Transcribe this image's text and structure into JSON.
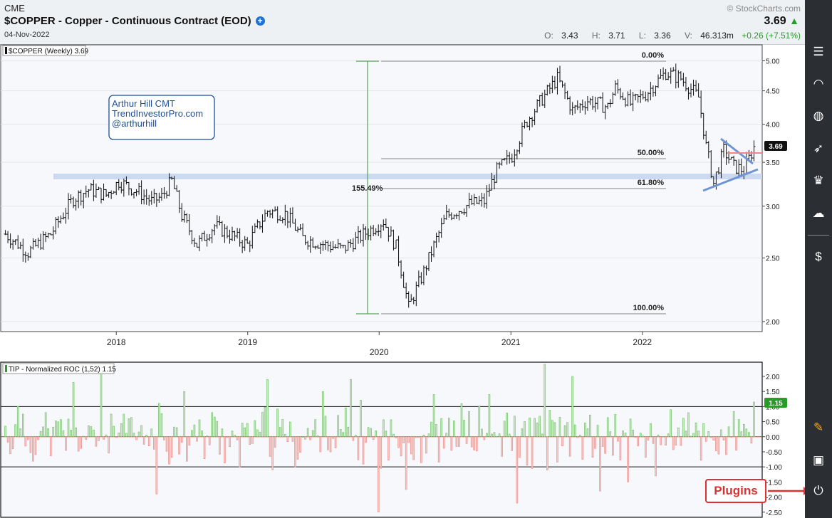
{
  "header": {
    "exchange": "CME",
    "title": "$COPPER - Copper - Continuous Contract (EOD)",
    "date": "04-Nov-2022",
    "copyright": "© StockCharts.com",
    "last_price": "3.69",
    "open_label": "O:",
    "open": "3.43",
    "high_label": "H:",
    "high": "3.71",
    "low_label": "L:",
    "low": "3.36",
    "volume_label": "V:",
    "volume": "46.313m",
    "change": "+0.26 (+7.51%)"
  },
  "colors": {
    "up": "#2a9a2a",
    "down": "#e03030",
    "fib": "#aaaaaa",
    "pattern": "#6f95d6",
    "zone": "#c6d6f0",
    "box": "#1f4e9c"
  },
  "annotation": {
    "line1": "Arthur Hill CMT",
    "line2": "TrendInvestorPro.com",
    "line3": "@arthurhill"
  },
  "plugins_label": "Plugins",
  "sidebar_icons": [
    "sliders-icon",
    "signal-icon",
    "globe-icon",
    "rocket-icon",
    "trophy-icon",
    "cloud-icon",
    "dollar-doc-icon",
    "brush-icon",
    "tv-icon",
    "plug-icon"
  ],
  "chart_data": [
    {
      "type": "ohlc",
      "legend": "$COPPER (Weekly) 3.69",
      "last_value_label": "3.69",
      "y_scale": "log",
      "ylim": [
        1.95,
        5.25
      ],
      "y_ticks": [
        "5.00",
        "4.50",
        "4.00",
        "3.50",
        "3.00",
        "2.50",
        "2.00"
      ],
      "x_ticks": [
        "2018",
        "2019",
        "2020",
        "2021",
        "2022"
      ],
      "x_range": [
        "2017-02-20",
        "2022-11-14"
      ],
      "points": [
        [
          "2017-02-27",
          2.72
        ],
        [
          "2017-05-01",
          2.55
        ],
        [
          "2017-07-03",
          2.72
        ],
        [
          "2017-09-04",
          3.08
        ],
        [
          "2017-10-16",
          3.18
        ],
        [
          "2017-12-04",
          3.12
        ],
        [
          "2018-01-08",
          3.27
        ],
        [
          "2018-03-05",
          3.15
        ],
        [
          "2018-04-09",
          3.05
        ],
        [
          "2018-05-07",
          3.1
        ],
        [
          "2018-06-04",
          3.28
        ],
        [
          "2018-07-02",
          2.9
        ],
        [
          "2018-08-13",
          2.62
        ],
        [
          "2018-10-01",
          2.8
        ],
        [
          "2018-12-31",
          2.62
        ],
        [
          "2019-02-25",
          2.95
        ],
        [
          "2019-04-15",
          2.92
        ],
        [
          "2019-06-03",
          2.68
        ],
        [
          "2019-08-05",
          2.62
        ],
        [
          "2019-09-23",
          2.58
        ],
        [
          "2019-11-04",
          2.68
        ],
        [
          "2020-01-13",
          2.85
        ],
        [
          "2020-02-17",
          2.6
        ],
        [
          "2020-03-23",
          2.1
        ],
        [
          "2020-05-04",
          2.38
        ],
        [
          "2020-07-06",
          2.9
        ],
        [
          "2020-09-07",
          3.02
        ],
        [
          "2020-10-19",
          3.05
        ],
        [
          "2020-11-23",
          3.4
        ],
        [
          "2021-01-04",
          3.58
        ],
        [
          "2021-02-15",
          4.05
        ],
        [
          "2021-05-10",
          4.7
        ],
        [
          "2021-06-21",
          4.2
        ],
        [
          "2021-08-02",
          4.35
        ],
        [
          "2021-09-27",
          4.25
        ],
        [
          "2021-10-18",
          4.55
        ],
        [
          "2021-11-29",
          4.3
        ],
        [
          "2022-01-10",
          4.45
        ],
        [
          "2022-03-07",
          4.8
        ],
        [
          "2022-04-18",
          4.7
        ],
        [
          "2022-06-06",
          4.4
        ],
        [
          "2022-06-27",
          3.7
        ],
        [
          "2022-07-18",
          3.25
        ],
        [
          "2022-08-15",
          3.65
        ],
        [
          "2022-09-12",
          3.45
        ],
        [
          "2022-10-10",
          3.4
        ],
        [
          "2022-11-07",
          3.69
        ]
      ],
      "fib_labels": [
        "0.00%",
        "50.00%",
        "61.80%",
        "100.00%"
      ],
      "move_label": "155.49%"
    },
    {
      "type": "bar",
      "legend": "TIP - Normalized ROC (1,52) 1.15",
      "last_value_label": "1.15",
      "ylim": [
        -2.6,
        2.4
      ],
      "y_ticks": [
        "2.00",
        "1.50",
        "1.00",
        "0.50",
        "0.00",
        "-0.50",
        "-1.00",
        "-1.50",
        "-2.00",
        "-2.50"
      ],
      "reference_lines": [
        1,
        -1
      ],
      "values": [
        1.0,
        0.8,
        1.8,
        2.1,
        0.6,
        -1.9,
        1.5,
        0.8,
        -1.0,
        1.9,
        -1.0,
        1.5,
        1.9,
        -2.5,
        -1.75,
        1.4,
        1.1,
        1.4,
        -2.2,
        2.4,
        2.0,
        -1.8,
        -1.5,
        -1.3,
        1.15
      ]
    }
  ]
}
